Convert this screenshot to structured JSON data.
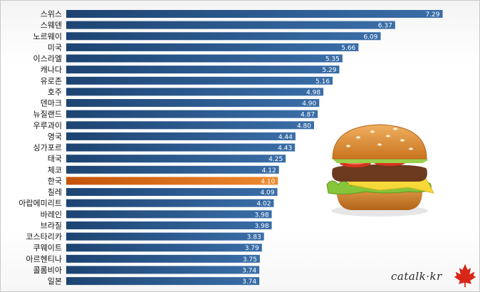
{
  "chart_data": {
    "type": "bar",
    "orientation": "horizontal",
    "title": "",
    "xlabel": "",
    "ylabel": "",
    "xlim": [
      0,
      7.6
    ],
    "grid": false,
    "legend": "none",
    "categories": [
      "스위스",
      "스웨덴",
      "노르웨이",
      "미국",
      "이스라엘",
      "캐나다",
      "유로존",
      "호주",
      "덴마크",
      "뉴질랜드",
      "우루과이",
      "영국",
      "싱가포르",
      "태국",
      "체코",
      "한국",
      "칠레",
      "아랍에미리트",
      "바레인",
      "브라질",
      "코스타리카",
      "쿠웨이트",
      "아르헨티나",
      "콜롬비아",
      "일본"
    ],
    "values": [
      7.29,
      6.37,
      6.09,
      5.66,
      5.35,
      5.29,
      5.16,
      4.98,
      4.9,
      4.87,
      4.8,
      4.44,
      4.43,
      4.25,
      4.12,
      4.1,
      4.09,
      4.02,
      3.98,
      3.98,
      3.83,
      3.79,
      3.75,
      3.74,
      3.74
    ],
    "value_labels": [
      "7.29",
      "6.37",
      "6.09",
      "5.66",
      "5.35",
      "5.29",
      "5.16",
      "4.98",
      "4.90",
      "4.87",
      "4.80",
      "4.44",
      "4.43",
      "4.25",
      "4.12",
      "4.10",
      "4.09",
      "4.02",
      "3.98",
      "3.98",
      "3.83",
      "3.79",
      "3.75",
      "3.74",
      "3.74"
    ],
    "highlight_category": "한국",
    "colors": {
      "bar_dark": "#1d4472",
      "bar_light": "#3a6ea8",
      "highlight_dark": "#c4530a",
      "highlight_light": "#ef8a2e",
      "value_text": "#ffffff"
    }
  },
  "decorations": {
    "illustration": "hamburger-illustration",
    "logo_icon": "maple-leaf-icon"
  },
  "watermark": {
    "text": "catalk·kr"
  }
}
